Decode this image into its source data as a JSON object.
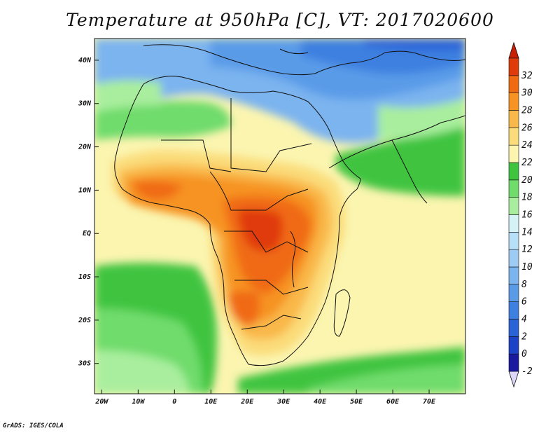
{
  "title": "Temperature at 950hPa [C], VT: 2017020600",
  "footer": "GrADS: IGES/COLA",
  "map": {
    "lon_range": [
      -22,
      80
    ],
    "lat_range": [
      -37,
      45
    ],
    "lon_ticks": [
      {
        "value": -20,
        "label": "20W"
      },
      {
        "value": -10,
        "label": "10W"
      },
      {
        "value": 0,
        "label": "0"
      },
      {
        "value": 10,
        "label": "10E"
      },
      {
        "value": 20,
        "label": "20E"
      },
      {
        "value": 30,
        "label": "30E"
      },
      {
        "value": 40,
        "label": "40E"
      },
      {
        "value": 50,
        "label": "50E"
      },
      {
        "value": 60,
        "label": "60E"
      },
      {
        "value": 70,
        "label": "70E"
      }
    ],
    "lat_ticks": [
      {
        "value": 40,
        "label": "40N"
      },
      {
        "value": 30,
        "label": "30N"
      },
      {
        "value": 20,
        "label": "20N"
      },
      {
        "value": 10,
        "label": "10N"
      },
      {
        "value": 0,
        "label": "EQ"
      },
      {
        "value": -10,
        "label": "10S"
      },
      {
        "value": -20,
        "label": "20S"
      },
      {
        "value": -30,
        "label": "30S"
      }
    ]
  },
  "colorbar": {
    "levels": [
      {
        "value": "-2",
        "color": "#1a1aa0"
      },
      {
        "value": "0",
        "color": "#1c43c7"
      },
      {
        "value": "2",
        "color": "#2a62d8"
      },
      {
        "value": "4",
        "color": "#3d80e0"
      },
      {
        "value": "6",
        "color": "#5a9be8"
      },
      {
        "value": "8",
        "color": "#7cb4ef"
      },
      {
        "value": "10",
        "color": "#9dcbf4"
      },
      {
        "value": "12",
        "color": "#b8dff8"
      },
      {
        "value": "14",
        "color": "#d5f2f6"
      },
      {
        "value": "16",
        "color": "#a9ee9e"
      },
      {
        "value": "18",
        "color": "#6fdc6c"
      },
      {
        "value": "20",
        "color": "#3fc43f"
      },
      {
        "value": "22",
        "color": "#fbf5b0"
      },
      {
        "value": "24",
        "color": "#fbdc7a"
      },
      {
        "value": "26",
        "color": "#f9b84a"
      },
      {
        "value": "28",
        "color": "#f69322"
      },
      {
        "value": "30",
        "color": "#f06a12"
      },
      {
        "value": "32",
        "color": "#e03a0a"
      }
    ],
    "low_end_color": "#ddd8f8",
    "high_end_color": "#c81e06"
  }
}
